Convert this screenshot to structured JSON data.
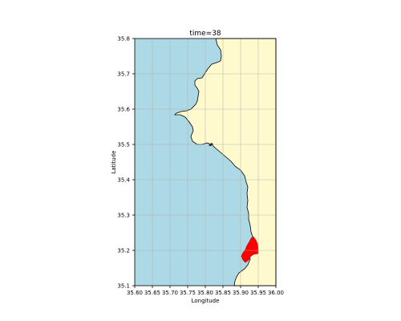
{
  "map": {
    "title": "time=38",
    "x_label": "Longitude",
    "y_label": "Latitude",
    "x_ticks": [
      "35.60",
      "35.65",
      "35.70",
      "35.75",
      "35.80",
      "35.85",
      "35.90",
      "35.95",
      "36.00"
    ],
    "y_ticks": [
      "35.8",
      "35.7",
      "35.6",
      "35.5",
      "35.4",
      "35.3",
      "35.2",
      "35.1"
    ],
    "extent": {
      "lon_min": 35.6,
      "lon_max": 36.0,
      "lat_min": 35.1,
      "lat_max": 35.8
    },
    "grid": true,
    "layers": [
      {
        "name": "sea",
        "color": "#add8e6"
      },
      {
        "name": "land",
        "color": "#fffacd"
      },
      {
        "name": "highlight",
        "color": "#ff0000"
      }
    ]
  }
}
